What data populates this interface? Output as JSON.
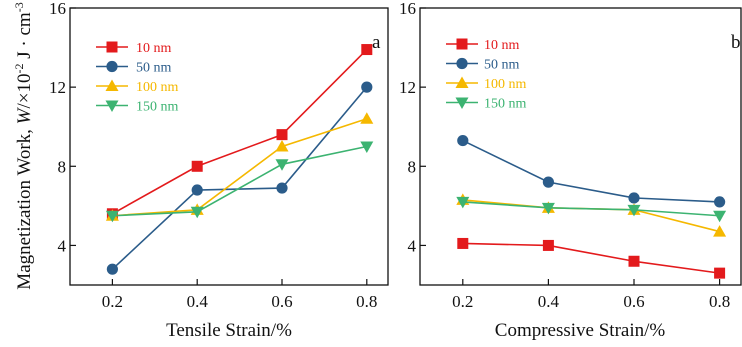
{
  "chart_data": [
    {
      "type": "line",
      "panel_label": "a",
      "xlabel": "Tensile Strain/%",
      "ylabel_prefix": "Magnetization Work, ",
      "ylabel_W": "W",
      "ylabel_mid": "/×10",
      "ylabel_exp": "-2",
      "ylabel_unit": " J · cm",
      "ylabel_unit_exp": "-3",
      "x": [
        0.2,
        0.4,
        0.6,
        0.8
      ],
      "xticks": [
        "0.2",
        "0.4",
        "0.6",
        "0.8"
      ],
      "yticks": [
        "4",
        "8",
        "12",
        "16"
      ],
      "xlim": [
        0.1,
        0.85
      ],
      "ylim": [
        2,
        16
      ],
      "legend_position": "top-left",
      "series": [
        {
          "name": "10 nm",
          "color": "#e31a1c",
          "marker": "square",
          "values": [
            5.6,
            8.0,
            9.6,
            13.9
          ]
        },
        {
          "name": "50 nm",
          "color": "#2b5c8a",
          "marker": "circle",
          "values": [
            2.8,
            6.8,
            6.9,
            12.0
          ]
        },
        {
          "name": "100 nm",
          "color": "#f5b800",
          "marker": "triangle-up",
          "values": [
            5.5,
            5.8,
            9.0,
            10.4
          ]
        },
        {
          "name": "150 nm",
          "color": "#3cb371",
          "marker": "triangle-down",
          "values": [
            5.5,
            5.7,
            8.1,
            9.0
          ]
        }
      ]
    },
    {
      "type": "line",
      "panel_label": "b",
      "xlabel": "Compressive Strain/%",
      "x": [
        0.2,
        0.4,
        0.6,
        0.8
      ],
      "xticks": [
        "0.2",
        "0.4",
        "0.6",
        "0.8"
      ],
      "yticks": [
        "4",
        "8",
        "12",
        "16"
      ],
      "xlim": [
        0.1,
        0.85
      ],
      "ylim": [
        2,
        16
      ],
      "legend_position": "top-left",
      "series": [
        {
          "name": "10 nm",
          "color": "#e31a1c",
          "marker": "square",
          "values": [
            4.1,
            4.0,
            3.2,
            2.6
          ]
        },
        {
          "name": "50 nm",
          "color": "#2b5c8a",
          "marker": "circle",
          "values": [
            9.3,
            7.2,
            6.4,
            6.2
          ]
        },
        {
          "name": "100 nm",
          "color": "#f5b800",
          "marker": "triangle-up",
          "values": [
            6.3,
            5.9,
            5.8,
            4.7
          ]
        },
        {
          "name": "150 nm",
          "color": "#3cb371",
          "marker": "triangle-down",
          "values": [
            6.2,
            5.9,
            5.8,
            5.5
          ]
        }
      ]
    }
  ]
}
